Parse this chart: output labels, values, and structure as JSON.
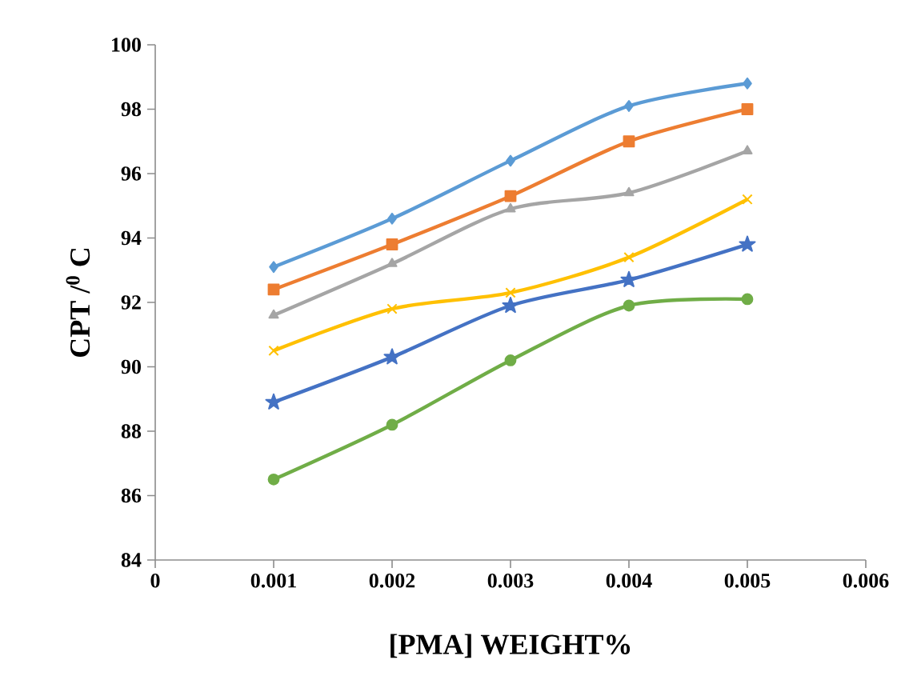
{
  "chart_data": {
    "type": "line",
    "xlabel": "[PMA] WEIGHT%",
    "ylabel": "CPT /$^{0}$ C",
    "x": [
      0.001,
      0.002,
      0.003,
      0.004,
      0.005
    ],
    "xlim": [
      0,
      0.006
    ],
    "xticks": [
      0,
      0.001,
      0.002,
      0.003,
      0.004,
      0.005,
      0.006
    ],
    "ylim": [
      84,
      100
    ],
    "yticks": [
      84,
      86,
      88,
      90,
      92,
      94,
      96,
      98,
      100
    ],
    "grid": false,
    "line_style": "solid",
    "series": [
      {
        "color": "#5b9bd5",
        "marker": "diamond",
        "values": [
          93.1,
          94.6,
          96.4,
          98.1,
          98.8
        ]
      },
      {
        "color": "#ed7d31",
        "marker": "square",
        "values": [
          92.4,
          93.8,
          95.3,
          97.0,
          98.0
        ]
      },
      {
        "color": "#a5a5a5",
        "marker": "triangle",
        "values": [
          91.6,
          93.2,
          94.9,
          95.4,
          96.7
        ]
      },
      {
        "color": "#ffc000",
        "marker": "cross",
        "values": [
          90.5,
          91.8,
          92.3,
          93.4,
          95.2
        ]
      },
      {
        "color": "#4472c4",
        "marker": "star",
        "values": [
          88.9,
          90.3,
          91.9,
          92.7,
          93.8
        ]
      },
      {
        "color": "#70ad47",
        "marker": "circle",
        "values": [
          86.5,
          88.2,
          90.2,
          91.9,
          92.1
        ]
      }
    ]
  }
}
